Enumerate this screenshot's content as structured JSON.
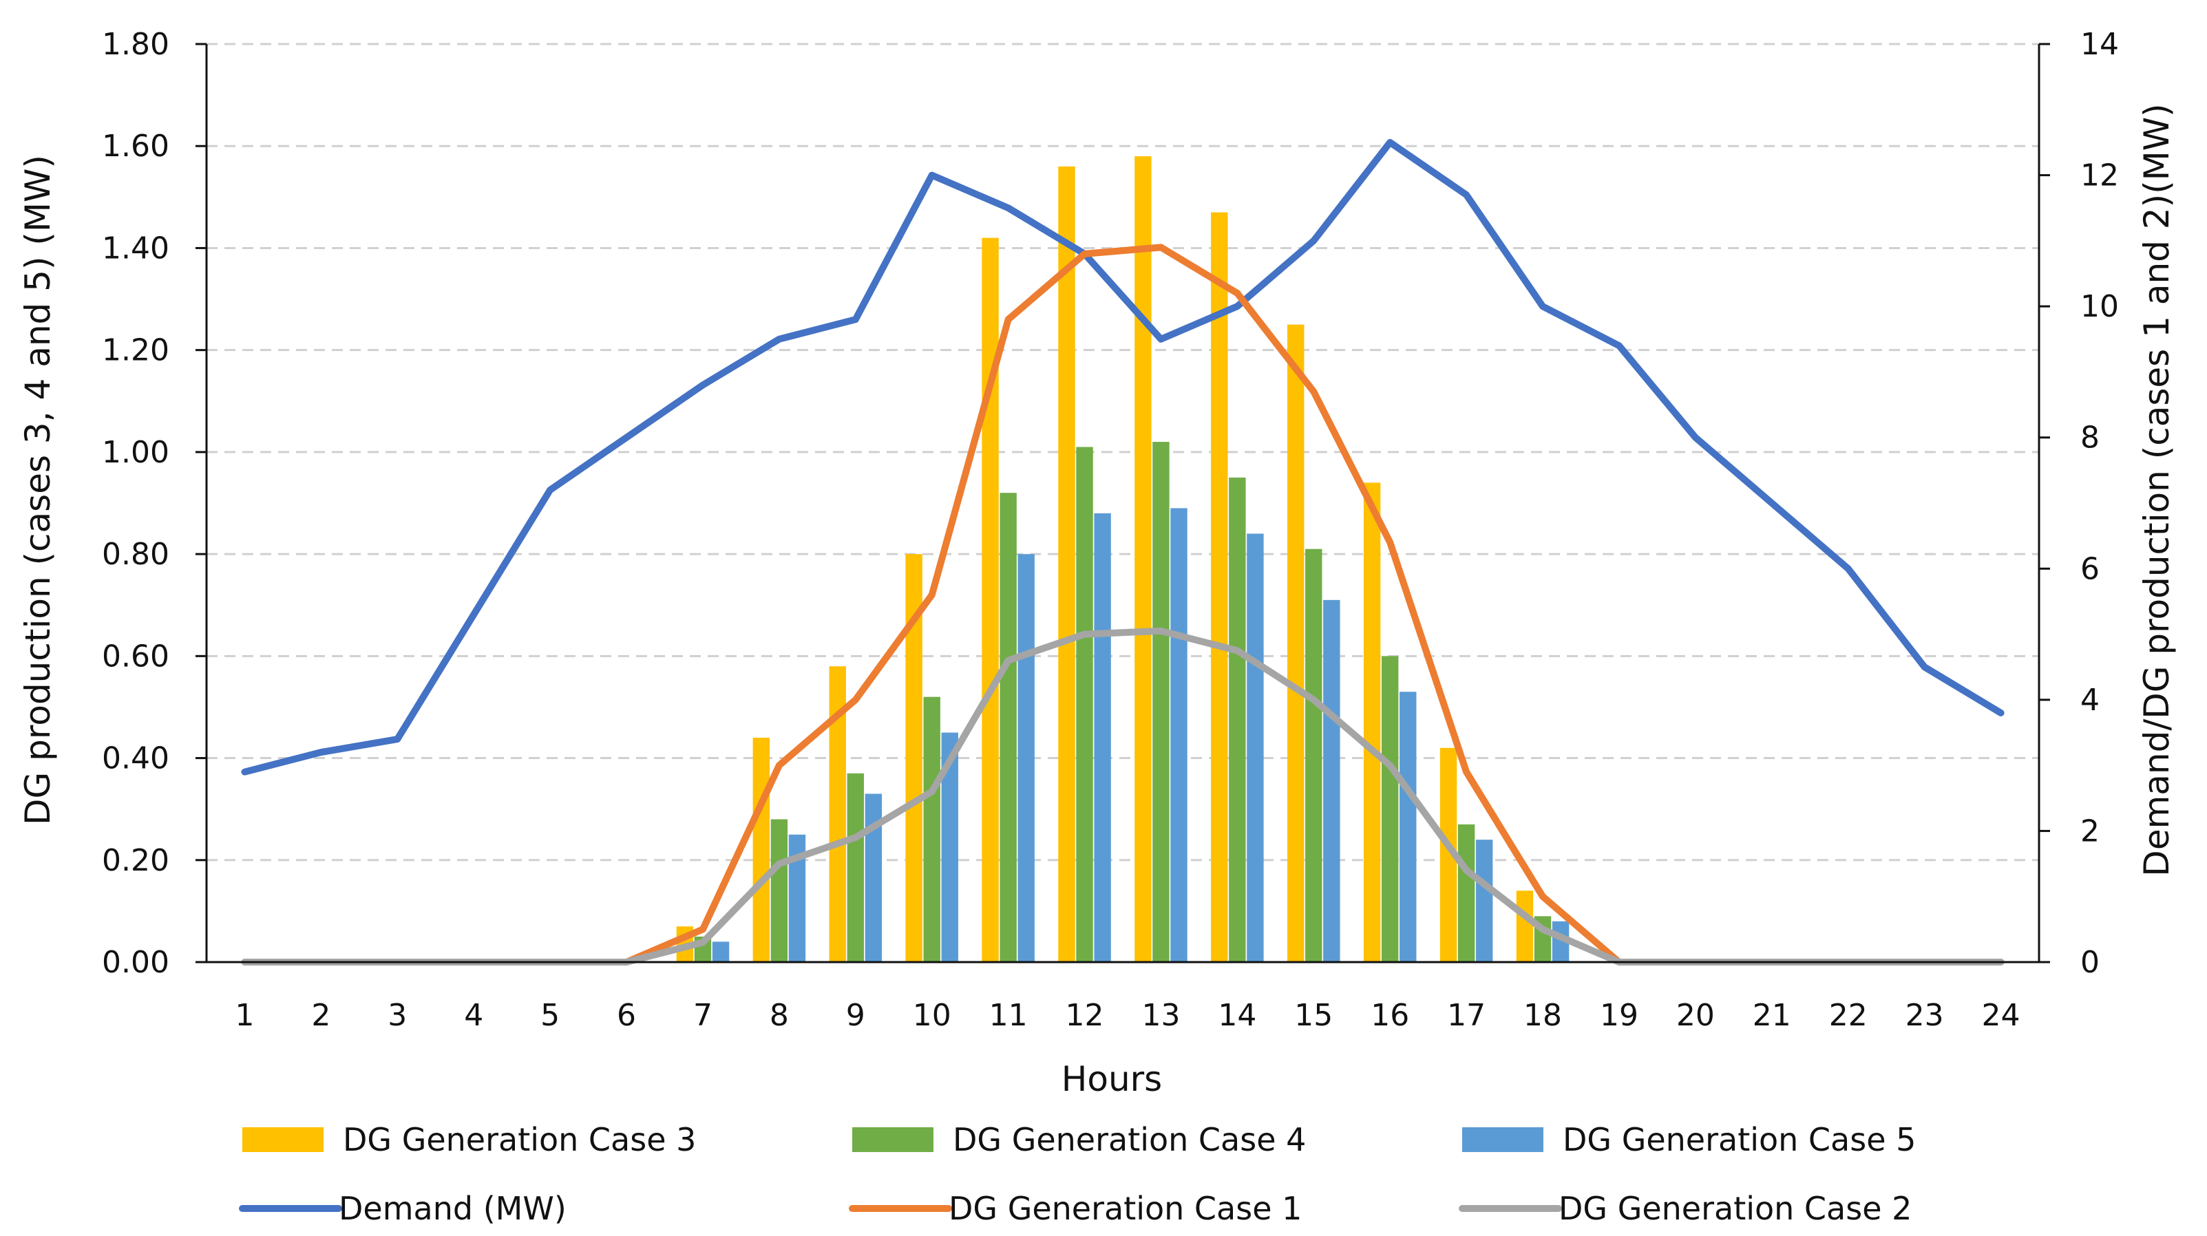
{
  "chart_data": {
    "type": "bar",
    "categories": [
      "1",
      "2",
      "3",
      "4",
      "5",
      "6",
      "7",
      "8",
      "9",
      "10",
      "11",
      "12",
      "13",
      "14",
      "15",
      "16",
      "17",
      "18",
      "19",
      "20",
      "21",
      "22",
      "23",
      "24"
    ],
    "xlabel": "Hours",
    "ylabel_left": "DG production (cases 3, 4  and 5) (MW)",
    "ylabel_right": "Demand/DG production (cases 1 and 2)(MW)",
    "ylim_left": [
      0,
      1.8
    ],
    "ylim_right": [
      0,
      14
    ],
    "yticks_left": [
      "0.00",
      "0.20",
      "0.40",
      "0.60",
      "0.80",
      "1.00",
      "1.20",
      "1.40",
      "1.60",
      "1.80"
    ],
    "yticks_right": [
      "0",
      "2",
      "4",
      "6",
      "8",
      "10",
      "12",
      "14"
    ],
    "grid": "horizontal dashed",
    "bar_series": [
      {
        "name": "DG Generation Case 3",
        "axis": "left",
        "color": "#FFC000",
        "values": [
          0,
          0,
          0,
          0,
          0,
          0,
          0.07,
          0.44,
          0.58,
          0.8,
          1.42,
          1.56,
          1.58,
          1.47,
          1.25,
          0.94,
          0.42,
          0.14,
          0,
          0,
          0,
          0,
          0,
          0
        ]
      },
      {
        "name": "DG Generation Case 4",
        "axis": "left",
        "color": "#70AD47",
        "values": [
          0,
          0,
          0,
          0,
          0,
          0,
          0.05,
          0.28,
          0.37,
          0.52,
          0.92,
          1.01,
          1.02,
          0.95,
          0.81,
          0.6,
          0.27,
          0.09,
          0,
          0,
          0,
          0,
          0,
          0
        ]
      },
      {
        "name": "DG Generation Case 5",
        "axis": "left",
        "color": "#5B9BD5",
        "values": [
          0,
          0,
          0,
          0,
          0,
          0,
          0.04,
          0.25,
          0.33,
          0.45,
          0.8,
          0.88,
          0.89,
          0.84,
          0.71,
          0.53,
          0.24,
          0.08,
          0,
          0,
          0,
          0,
          0,
          0
        ]
      }
    ],
    "line_series": [
      {
        "name": "Demand (MW)",
        "axis": "right",
        "color": "#4472C4",
        "values": [
          2.9,
          3.2,
          3.4,
          5.3,
          7.2,
          8.0,
          8.8,
          9.5,
          9.8,
          12.0,
          11.5,
          10.8,
          9.5,
          10.0,
          11.0,
          12.5,
          11.7,
          10.0,
          9.4,
          8.0,
          7.0,
          6.0,
          4.5,
          3.8
        ]
      },
      {
        "name": "DG Generation Case 1",
        "axis": "right",
        "color": "#ED7D31",
        "values": [
          0,
          0,
          0,
          0,
          0,
          0,
          0.5,
          3.0,
          4.0,
          5.6,
          9.8,
          10.8,
          10.9,
          10.2,
          8.7,
          6.4,
          2.9,
          1.0,
          0,
          0,
          0,
          0,
          0,
          0
        ]
      },
      {
        "name": "DG Generation Case 2",
        "axis": "right",
        "color": "#A5A5A5",
        "values": [
          0,
          0,
          0,
          0,
          0,
          0,
          0.3,
          1.5,
          1.9,
          2.6,
          4.6,
          5.0,
          5.05,
          4.75,
          4.0,
          3.0,
          1.4,
          0.5,
          0,
          0,
          0,
          0,
          0,
          0
        ]
      }
    ],
    "legend": {
      "placement": "bottom",
      "rows": [
        [
          "DG Generation Case 3",
          "DG Generation Case 4",
          "DG Generation Case 5"
        ],
        [
          "Demand (MW)",
          "DG Generation Case 1",
          "DG Generation Case 2"
        ]
      ]
    }
  }
}
